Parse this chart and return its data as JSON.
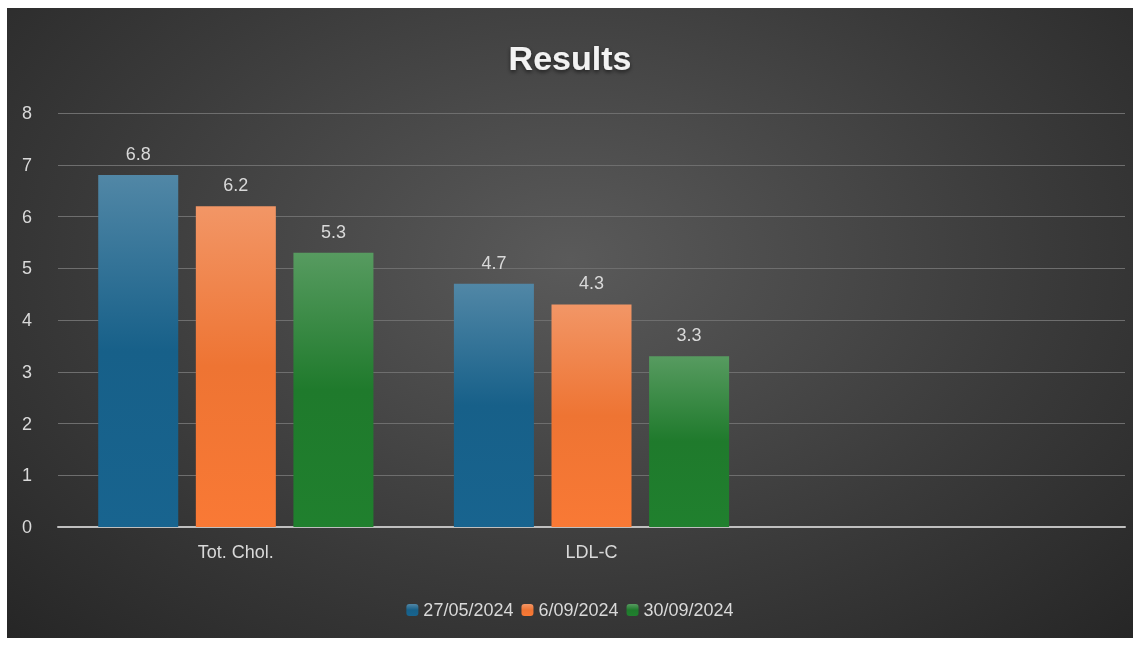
{
  "chart_data": {
    "type": "bar",
    "title": "Results",
    "categories": [
      "Tot. Chol.",
      "LDL-C",
      null
    ],
    "series": [
      {
        "name": "27/05/2024",
        "color": "#176089",
        "values": [
          6.8,
          4.7,
          null
        ]
      },
      {
        "name": "6/09/2024",
        "color": "#ee7433",
        "values": [
          6.2,
          4.3,
          null
        ]
      },
      {
        "name": "30/09/2024",
        "color": "#1f7a2c",
        "values": [
          5.3,
          3.3,
          null
        ]
      }
    ],
    "ylim": [
      0,
      8
    ],
    "yticks": [
      0,
      1,
      2,
      3,
      4,
      5,
      6,
      7,
      8
    ],
    "grid": "y",
    "legend": "bottom",
    "data_labels": true
  }
}
